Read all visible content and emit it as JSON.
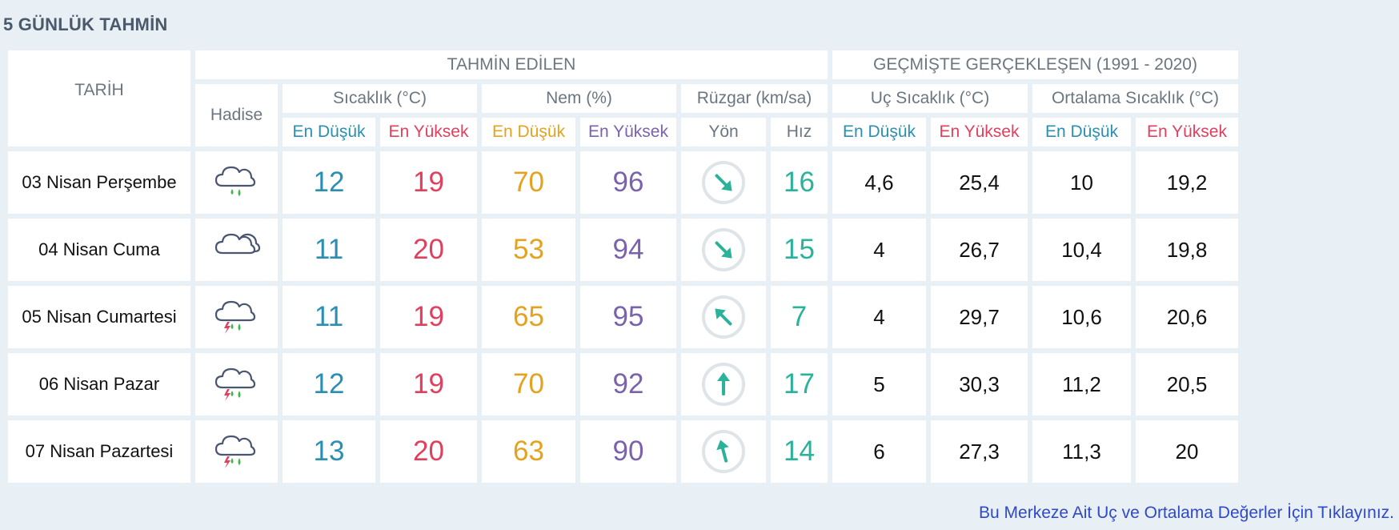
{
  "title": "5 GÜNLÜK TAHMİN",
  "headers": {
    "tarih": "TARİH",
    "tahmin_edilen": "TAHMİN EDİLEN",
    "gecmiste": "GEÇMİŞTE GERÇEKLEŞEN (1991 - 2020)",
    "hadise": "Hadise",
    "sicaklik": "Sıcaklık (°C)",
    "nem": "Nem (%)",
    "ruzgar": "Rüzgar (km/sa)",
    "uc_sicaklik": "Uç Sıcaklık (°C)",
    "ortalama_sicaklik": "Ortalama Sıcaklık (°C)",
    "en_dusuk": "En Düşük",
    "en_yuksek": "En Yüksek",
    "yon": "Yön",
    "hiz": "Hız"
  },
  "colors": {
    "min": "#2a8fb2",
    "max": "#e0405e",
    "humidity_min": "#e4a21d",
    "humidity_max": "#7a62ac",
    "wind": "#2ab39a",
    "link": "#2e49c9"
  },
  "rows": [
    {
      "date": "03 Nisan Perşembe",
      "icon": "rain-cloud-icon",
      "temp_min": "12",
      "temp_max": "19",
      "hum_min": "70",
      "hum_max": "96",
      "wind_dir": "south-east",
      "wind_speed": "16",
      "ext_min": "4,6",
      "ext_max": "25,4",
      "avg_min": "10",
      "avg_max": "19,2"
    },
    {
      "date": "04 Nisan Cuma",
      "icon": "cloudy-icon",
      "temp_min": "11",
      "temp_max": "20",
      "hum_min": "53",
      "hum_max": "94",
      "wind_dir": "south-east",
      "wind_speed": "15",
      "ext_min": "4",
      "ext_max": "26,7",
      "avg_min": "10,4",
      "avg_max": "19,8"
    },
    {
      "date": "05 Nisan Cumartesi",
      "icon": "thunderstorm-icon",
      "temp_min": "11",
      "temp_max": "19",
      "hum_min": "65",
      "hum_max": "95",
      "wind_dir": "north-west",
      "wind_speed": "7",
      "ext_min": "4",
      "ext_max": "29,7",
      "avg_min": "10,6",
      "avg_max": "20,6"
    },
    {
      "date": "06 Nisan Pazar",
      "icon": "thunderstorm-icon",
      "temp_min": "12",
      "temp_max": "19",
      "hum_min": "70",
      "hum_max": "92",
      "wind_dir": "north",
      "wind_speed": "17",
      "ext_min": "5",
      "ext_max": "30,3",
      "avg_min": "11,2",
      "avg_max": "20,5"
    },
    {
      "date": "07 Nisan Pazartesi",
      "icon": "thunderstorm-icon",
      "temp_min": "13",
      "temp_max": "20",
      "hum_min": "63",
      "hum_max": "90",
      "wind_dir": "north-north-west",
      "wind_speed": "14",
      "ext_min": "6",
      "ext_max": "27,3",
      "avg_min": "11,3",
      "avg_max": "20"
    }
  ],
  "link_text": "Bu Merkeze Ait Uç ve Ortalama Değerler İçin Tıklayınız."
}
